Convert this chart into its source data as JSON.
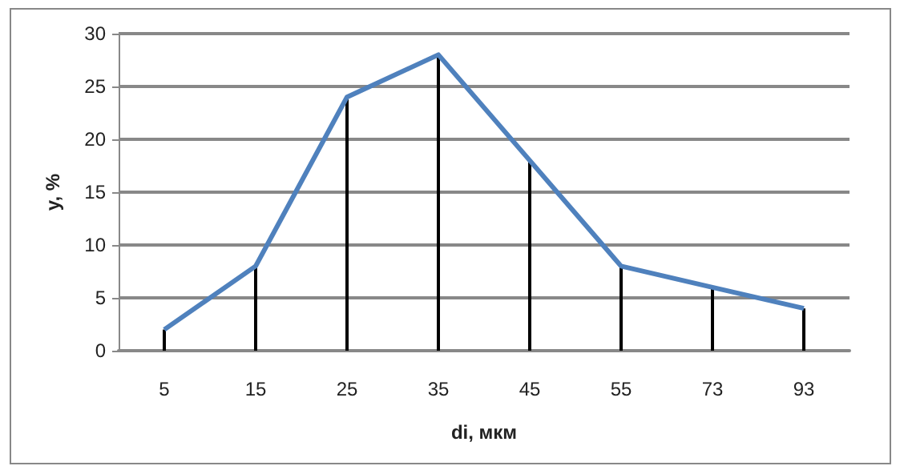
{
  "chart_data": {
    "type": "line",
    "xlabel": "di, мкм",
    "ylabel": "y, %",
    "categories": [
      "5",
      "15",
      "25",
      "35",
      "45",
      "55",
      "73",
      "93"
    ],
    "series": [
      {
        "type": "bar",
        "color": "#000000",
        "values": [
          2,
          8,
          24,
          28,
          18,
          8,
          6,
          4
        ]
      },
      {
        "color": "#4f81bd",
        "values": [
          2,
          8,
          24,
          28,
          18,
          8,
          6,
          4
        ]
      }
    ],
    "ylim": [
      0,
      30
    ],
    "yticks": [
      0,
      5,
      10,
      15,
      20,
      25,
      30
    ],
    "grid": "y",
    "marker": "none",
    "line_style": "solid"
  }
}
